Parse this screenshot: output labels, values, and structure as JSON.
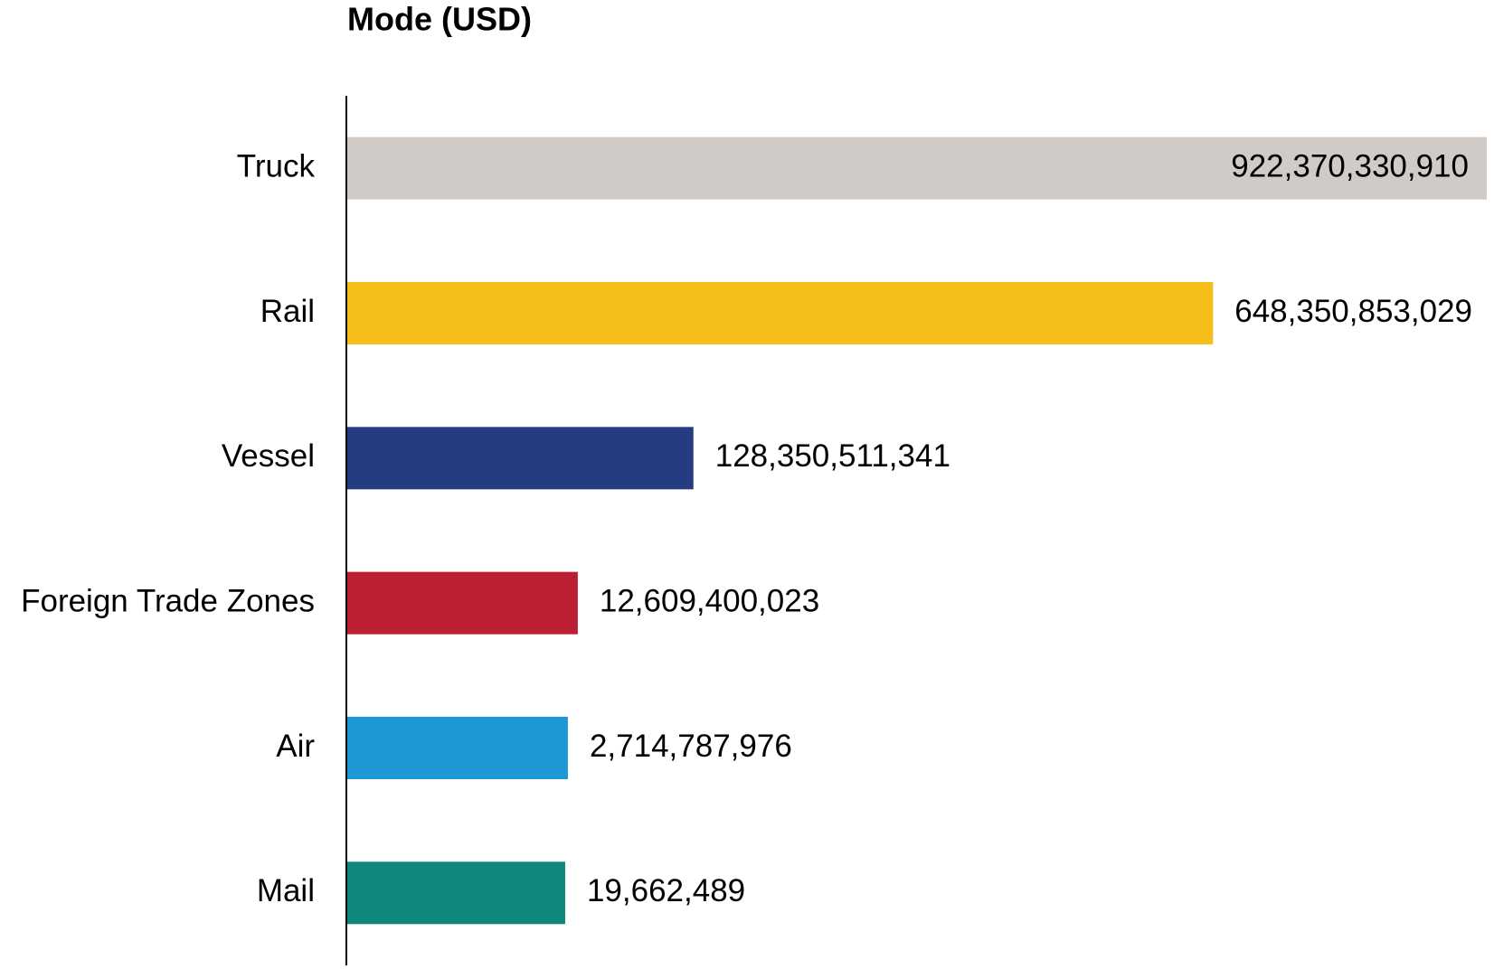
{
  "chart_data": {
    "type": "bar",
    "orientation": "horizontal",
    "title": "Mode (USD)",
    "categories": [
      "Truck",
      "Rail",
      "Vessel",
      "Foreign Trade Zones",
      "Air",
      "Mail"
    ],
    "values": [
      922370330910,
      648350853029,
      128350511341,
      12609400023,
      2714787976,
      19662489
    ],
    "value_labels": [
      "922,370,330,910",
      "648,350,853,029",
      "128,350,511,341",
      "12,609,400,023",
      "2,714,787,976",
      "19,662,489"
    ],
    "colors": [
      "#d0cbc6",
      "#f5be18",
      "#253c82",
      "#bb1f31",
      "#1e98d5",
      "#0f887c"
    ],
    "xlim": [
      -219000000000,
      922370330910
    ]
  }
}
